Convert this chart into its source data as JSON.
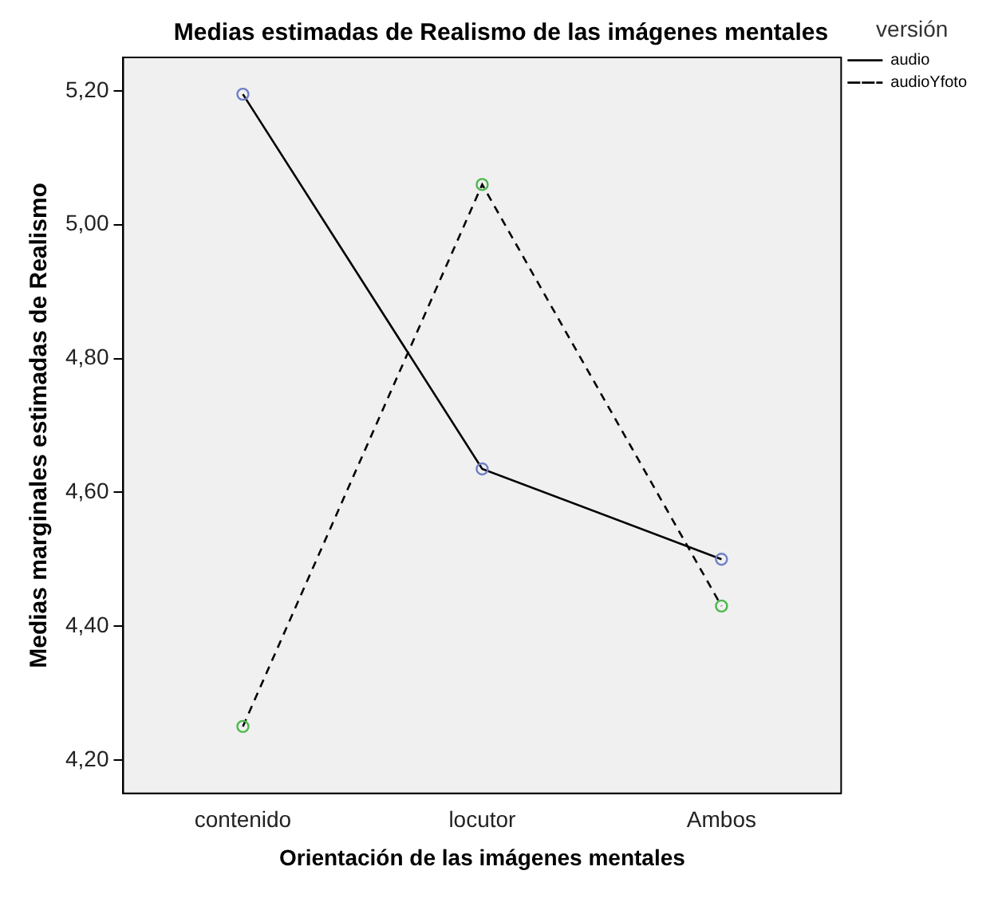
{
  "chart_data": {
    "type": "line",
    "title": "Medias estimadas de Realismo de las imágenes mentales",
    "xlabel": "Orientación de las imágenes mentales",
    "ylabel": "Medias marginales estimadas de Realismo",
    "legend_title": "versión",
    "categories": [
      "contenido",
      "locutor",
      "Ambos"
    ],
    "series": [
      {
        "name": "audio",
        "color": "#000000",
        "colors": [
          "#6f7fc7",
          "#6f7fc7",
          "#6f7fc7"
        ],
        "line_style": "solid",
        "values": [
          5.195,
          4.635,
          4.5
        ]
      },
      {
        "name": "audioYfoto",
        "color": "#000000",
        "colors": [
          "#4cb84c",
          "#4cb84c",
          "#4cb84c"
        ],
        "line_style": "dashed",
        "values": [
          4.25,
          5.06,
          4.43
        ]
      }
    ],
    "ylim": [
      4.15,
      5.25
    ],
    "yticks": [
      {
        "value": 4.2,
        "label": "4,20"
      },
      {
        "value": 4.4,
        "label": "4,40"
      },
      {
        "value": 4.6,
        "label": "4,60"
      },
      {
        "value": 4.8,
        "label": "4,80"
      },
      {
        "value": 5.0,
        "label": "5,00"
      },
      {
        "value": 5.2,
        "label": "5,20"
      }
    ],
    "grid": false,
    "legend": "top right",
    "marker": "circle"
  }
}
